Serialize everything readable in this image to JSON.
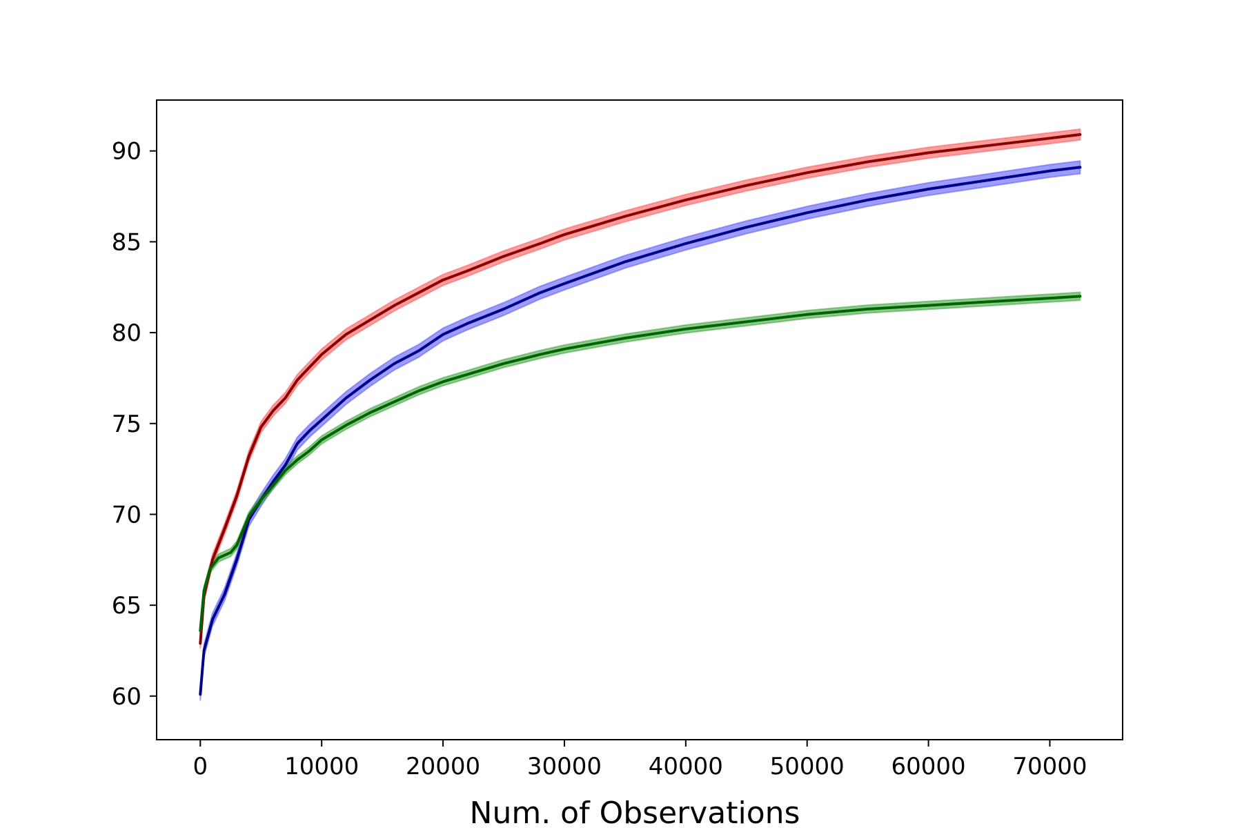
{
  "chart_data": {
    "type": "line",
    "title": "",
    "xlabel": "Num. of Observations",
    "ylabel": "",
    "xlim": [
      -3600,
      76000
    ],
    "ylim": [
      57.6,
      92.8
    ],
    "xticks": [
      0,
      10000,
      20000,
      30000,
      40000,
      50000,
      60000,
      70000
    ],
    "xtick_labels": [
      "0",
      "10000",
      "20000",
      "30000",
      "40000",
      "50000",
      "60000",
      "70000"
    ],
    "yticks": [
      60,
      65,
      70,
      75,
      80,
      85,
      90
    ],
    "ytick_labels": [
      "60",
      "65",
      "70",
      "75",
      "80",
      "85",
      "90"
    ],
    "grid": false,
    "legend": "none",
    "series": [
      {
        "line_color": "#8b0000",
        "band_color": "#ff4d4d",
        "band_halfwidth": 0.3,
        "points": [
          [
            0,
            62.9
          ],
          [
            300,
            65.5
          ],
          [
            1000,
            67.5
          ],
          [
            2000,
            69.2
          ],
          [
            3000,
            71.0
          ],
          [
            4000,
            73.2
          ],
          [
            5000,
            74.8
          ],
          [
            6000,
            75.7
          ],
          [
            7000,
            76.4
          ],
          [
            8000,
            77.4
          ],
          [
            9000,
            78.1
          ],
          [
            10000,
            78.8
          ],
          [
            12000,
            79.9
          ],
          [
            14000,
            80.7
          ],
          [
            16000,
            81.5
          ],
          [
            18000,
            82.2
          ],
          [
            20000,
            82.9
          ],
          [
            22000,
            83.4
          ],
          [
            25000,
            84.2
          ],
          [
            28000,
            84.9
          ],
          [
            30000,
            85.4
          ],
          [
            35000,
            86.4
          ],
          [
            40000,
            87.3
          ],
          [
            45000,
            88.1
          ],
          [
            50000,
            88.8
          ],
          [
            55000,
            89.4
          ],
          [
            60000,
            89.9
          ],
          [
            65000,
            90.3
          ],
          [
            70000,
            90.7
          ],
          [
            72500,
            90.9
          ]
        ]
      },
      {
        "line_color": "#00008b",
        "band_color": "#4d4dff",
        "band_halfwidth": 0.35,
        "points": [
          [
            0,
            60.1
          ],
          [
            300,
            62.5
          ],
          [
            1000,
            64.2
          ],
          [
            2000,
            65.6
          ],
          [
            3000,
            67.5
          ],
          [
            4000,
            69.7
          ],
          [
            5000,
            70.8
          ],
          [
            6000,
            71.8
          ],
          [
            7000,
            72.7
          ],
          [
            8000,
            73.9
          ],
          [
            9000,
            74.6
          ],
          [
            10000,
            75.2
          ],
          [
            12000,
            76.4
          ],
          [
            14000,
            77.4
          ],
          [
            16000,
            78.3
          ],
          [
            18000,
            79.0
          ],
          [
            20000,
            79.9
          ],
          [
            22000,
            80.5
          ],
          [
            25000,
            81.3
          ],
          [
            28000,
            82.2
          ],
          [
            30000,
            82.7
          ],
          [
            35000,
            83.9
          ],
          [
            40000,
            84.9
          ],
          [
            45000,
            85.8
          ],
          [
            50000,
            86.6
          ],
          [
            55000,
            87.3
          ],
          [
            60000,
            87.9
          ],
          [
            65000,
            88.4
          ],
          [
            70000,
            88.9
          ],
          [
            72500,
            89.1
          ]
        ]
      },
      {
        "line_color": "#006400",
        "band_color": "#33a033",
        "band_halfwidth": 0.22,
        "points": [
          [
            0,
            63.6
          ],
          [
            300,
            65.8
          ],
          [
            800,
            67.0
          ],
          [
            1500,
            67.6
          ],
          [
            2500,
            67.9
          ],
          [
            3000,
            68.3
          ],
          [
            4000,
            69.9
          ],
          [
            5000,
            70.8
          ],
          [
            6000,
            71.6
          ],
          [
            7000,
            72.4
          ],
          [
            8000,
            73.0
          ],
          [
            9000,
            73.5
          ],
          [
            10000,
            74.1
          ],
          [
            12000,
            74.9
          ],
          [
            14000,
            75.6
          ],
          [
            16000,
            76.2
          ],
          [
            18000,
            76.8
          ],
          [
            20000,
            77.3
          ],
          [
            22000,
            77.7
          ],
          [
            25000,
            78.3
          ],
          [
            28000,
            78.8
          ],
          [
            30000,
            79.1
          ],
          [
            35000,
            79.7
          ],
          [
            40000,
            80.2
          ],
          [
            45000,
            80.6
          ],
          [
            50000,
            81.0
          ],
          [
            55000,
            81.3
          ],
          [
            60000,
            81.5
          ],
          [
            65000,
            81.7
          ],
          [
            70000,
            81.9
          ],
          [
            72500,
            82.0
          ]
        ]
      }
    ]
  }
}
